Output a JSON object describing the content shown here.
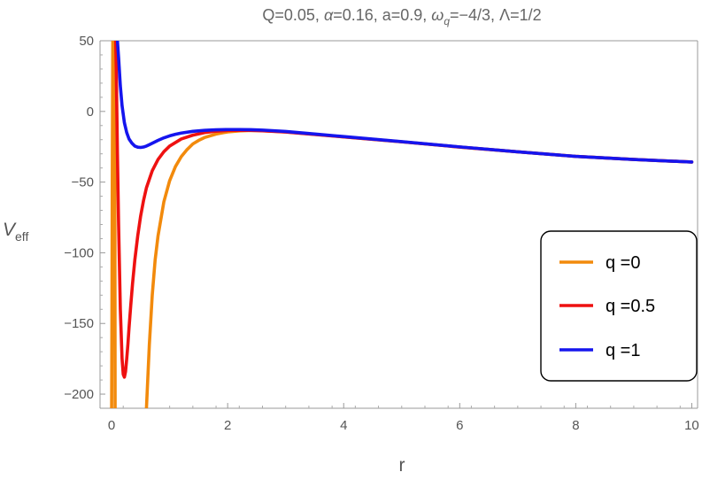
{
  "chart_data": {
    "type": "line",
    "title": "Q=0.05, α=0.16, a=0.9, ωq=−4/3, Λ=1/2",
    "title_parts": {
      "prefix": "Q=0.05, ",
      "alpha_symbol": "α",
      "alpha_value": "=0.16, a=0.9, ",
      "omega_symbol": "ω",
      "omega_subscript": "q",
      "omega_value": "=−4/3, Λ=1/2"
    },
    "xlabel": "r",
    "ylabel": "V",
    "ylabel_subscript": "eff",
    "xlim": [
      -0.2,
      10.1
    ],
    "ylim": [
      -210,
      50
    ],
    "x_ticks": [
      0,
      2,
      4,
      6,
      8,
      10
    ],
    "x_tick_labels": [
      "0",
      "2",
      "4",
      "6",
      "8",
      "10"
    ],
    "y_ticks": [
      50,
      0,
      -50,
      -100,
      -150,
      -200
    ],
    "y_tick_labels": [
      "50",
      "0",
      "−50",
      "−100",
      "−150",
      "−200"
    ],
    "grid": false,
    "legend_position": "right",
    "series": [
      {
        "name": "q =0",
        "color": "#f28a0c",
        "x": [
          0.0,
          0.005,
          0.01,
          0.02,
          0.03,
          0.04,
          0.05,
          0.055,
          0.06,
          0.58,
          0.6,
          0.65,
          0.7,
          0.75,
          0.8,
          0.9,
          1.0,
          1.1,
          1.2,
          1.3,
          1.4,
          1.5,
          1.6,
          1.8,
          2.0,
          2.2,
          2.4,
          2.6,
          2.8,
          3.0,
          3.5,
          4.0,
          5.0,
          6.0,
          7.0,
          8.0,
          9.0,
          10.0
        ],
        "y": [
          -210,
          -150,
          -60,
          50,
          null,
          null,
          50,
          -20,
          -210,
          null,
          -210,
          -165,
          -130,
          -105,
          -88,
          -64,
          -49,
          -39,
          -32,
          -27,
          -23,
          -20.5,
          -18.5,
          -16,
          -14.5,
          -13.8,
          -13.5,
          -13.6,
          -14,
          -14.5,
          -16.2,
          -18,
          -21.5,
          -25.2,
          -28.6,
          -31.8,
          -34,
          -35.8
        ]
      },
      {
        "name": "q =0.5",
        "color": "#ee1111",
        "x": [
          0.07,
          0.08,
          0.1,
          0.12,
          0.15,
          0.18,
          0.2,
          0.22,
          0.24,
          0.26,
          0.28,
          0.3,
          0.33,
          0.36,
          0.4,
          0.45,
          0.5,
          0.55,
          0.6,
          0.7,
          0.8,
          0.9,
          1.0,
          1.2,
          1.4,
          1.6,
          1.8,
          2.0,
          2.2,
          2.4,
          2.6,
          3.0,
          3.5,
          4.0,
          5.0,
          6.0,
          7.0,
          8.0,
          9.0,
          10.0
        ],
        "y": [
          50,
          30,
          -30,
          -80,
          -140,
          -175,
          -186,
          -188,
          -184,
          -175,
          -165,
          -153,
          -137,
          -122,
          -105,
          -88,
          -74,
          -63,
          -54,
          -42,
          -34,
          -28.5,
          -24.5,
          -19.5,
          -16.8,
          -15,
          -14,
          -13.5,
          -13.3,
          -13.4,
          -13.7,
          -14.6,
          -16.3,
          -18,
          -21.5,
          -25.2,
          -28.6,
          -31.8,
          -34,
          -35.8
        ]
      },
      {
        "name": "q =1",
        "color": "#1515ee",
        "x": [
          0.1,
          0.12,
          0.15,
          0.18,
          0.22,
          0.26,
          0.3,
          0.35,
          0.4,
          0.45,
          0.5,
          0.55,
          0.6,
          0.65,
          0.7,
          0.8,
          0.9,
          1.0,
          1.1,
          1.2,
          1.4,
          1.6,
          1.8,
          2.0,
          2.2,
          2.4,
          2.6,
          3.0,
          3.5,
          4.0,
          5.0,
          6.0,
          7.0,
          8.0,
          9.0,
          10.0
        ],
        "y": [
          50,
          38,
          18,
          4,
          -8,
          -15,
          -19.5,
          -22.5,
          -24.5,
          -25.3,
          -25.5,
          -25.2,
          -24.5,
          -23.5,
          -22.5,
          -20.5,
          -18.7,
          -17.3,
          -16.2,
          -15.3,
          -14.1,
          -13.4,
          -13,
          -12.8,
          -12.8,
          -12.9,
          -13.2,
          -14.2,
          -16,
          -17.8,
          -21.4,
          -25.1,
          -28.6,
          -31.8,
          -34,
          -35.8
        ]
      }
    ]
  }
}
